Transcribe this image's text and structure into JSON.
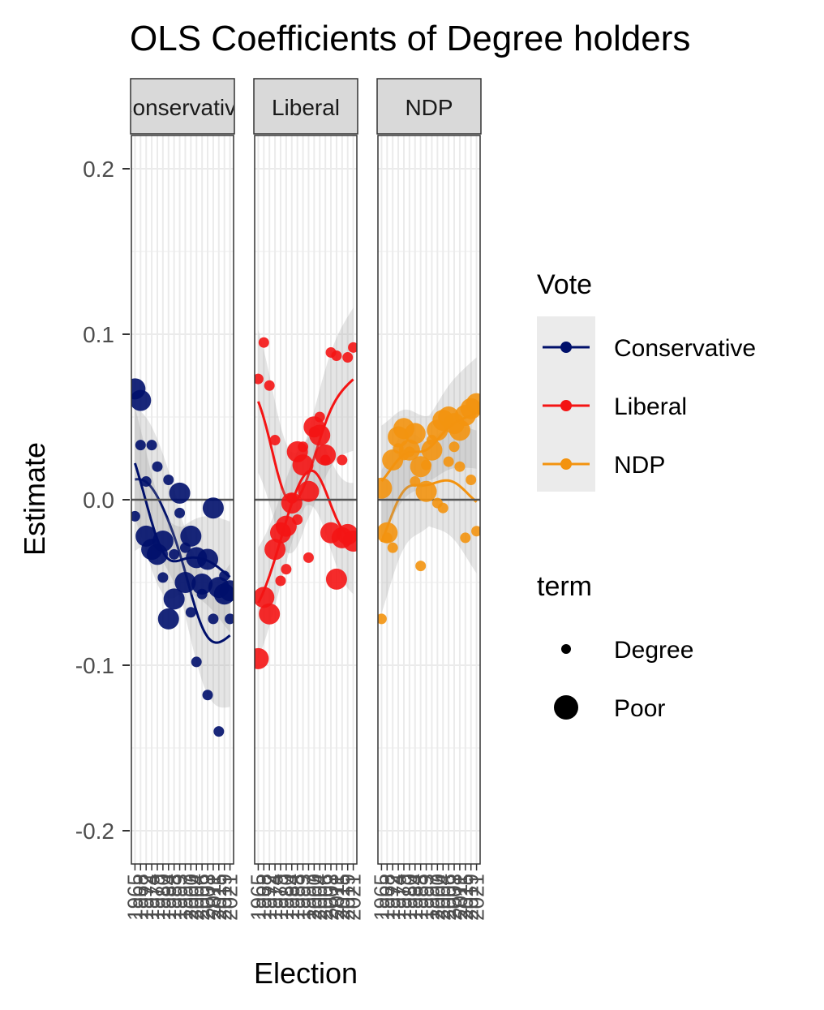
{
  "chart_data": {
    "type": "scatter",
    "title": "OLS Coefficients of Degree holders",
    "xlabel": "Election",
    "ylabel": "Estimate",
    "ylim": [
      -0.22,
      0.2
    ],
    "yticks": [
      {
        "value": 0.2,
        "label": "0.2"
      },
      {
        "value": 0.1,
        "label": "0.1"
      },
      {
        "value": 0.0,
        "label": "0.0"
      },
      {
        "value": -0.1,
        "label": "-0.1"
      },
      {
        "value": -0.2,
        "label": "-0.2"
      }
    ],
    "x_categories": [
      "1965",
      "1968",
      "1972",
      "1974",
      "1979",
      "1980",
      "1984",
      "1988",
      "1993",
      "1997",
      "2000",
      "2004",
      "2006",
      "2008",
      "2011",
      "2015",
      "2019",
      "2021"
    ],
    "reference_line": 0,
    "colors": {
      "Conservative": "#00106b",
      "Liberal": "#f41414",
      "NDP": "#f3930f"
    },
    "legend_vote_title": "Vote",
    "legend_vote_entries": [
      "Conservative",
      "Liberal",
      "NDP"
    ],
    "legend_term_title": "term",
    "legend_term_entries": [
      "Degree",
      "Poor"
    ],
    "facets": [
      {
        "label": "Conservative",
        "degree": [
          -0.01,
          0.033,
          0.011,
          0.033,
          0.02,
          -0.047,
          0.012,
          -0.033,
          -0.008,
          -0.029,
          -0.068,
          -0.098,
          -0.057,
          -0.118,
          -0.072,
          -0.14,
          -0.046,
          -0.072
        ],
        "poor": [
          0.067,
          0.06,
          -0.022,
          -0.03,
          -0.033,
          -0.025,
          -0.072,
          -0.06,
          0.004,
          -0.05,
          -0.022,
          -0.035,
          -0.051,
          -0.036,
          -0.005,
          -0.053,
          -0.057,
          -0.055
        ]
      },
      {
        "label": "Liberal",
        "degree": [
          0.073,
          0.095,
          0.069,
          0.036,
          -0.049,
          -0.042,
          0.001,
          -0.012,
          0.032,
          -0.035,
          0.041,
          0.05,
          0.024,
          0.089,
          0.087,
          0.024,
          0.086,
          0.092
        ],
        "poor": [
          -0.096,
          -0.059,
          -0.069,
          -0.03,
          -0.02,
          -0.016,
          -0.002,
          0.029,
          0.021,
          0.005,
          0.044,
          0.039,
          0.027,
          -0.02,
          -0.048,
          -0.023,
          -0.021,
          -0.025
        ]
      },
      {
        "label": "NDP",
        "degree": [
          -0.072,
          -0.023,
          -0.029,
          0.031,
          0.027,
          0.029,
          0.011,
          -0.04,
          0.021,
          0.036,
          -0.002,
          -0.005,
          0.023,
          0.032,
          0.02,
          -0.023,
          0.012,
          -0.019
        ],
        "poor": [
          0.007,
          -0.02,
          0.024,
          0.038,
          0.043,
          0.03,
          0.04,
          0.02,
          0.005,
          0.03,
          0.042,
          0.048,
          0.05,
          0.046,
          0.042,
          0.051,
          0.055,
          0.058
        ]
      }
    ]
  }
}
